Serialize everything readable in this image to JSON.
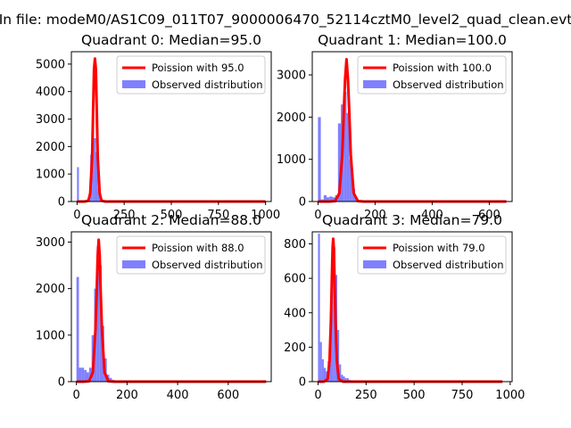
{
  "figure": {
    "suptitle": "In file: modeM0/AS1C09_011T07_9000006470_52114cztM0_level2_quad_clean.evt"
  },
  "colors": {
    "poisson": "#ff0000",
    "observed": "#8080ff",
    "axis": "#000000",
    "background": "#ffffff"
  },
  "chart_data": [
    {
      "type": "bar",
      "title": "Quadrant 0: Median=95.0",
      "xlabel": "",
      "ylabel": "",
      "xlim": [
        -30,
        1030
      ],
      "ylim": [
        0,
        5450
      ],
      "xticks": [
        0,
        250,
        500,
        750,
        1000
      ],
      "xtick_labels": [
        "0",
        "250",
        "500",
        "750",
        "1000"
      ],
      "yticks": [
        0,
        1000,
        2000,
        3000,
        4000,
        5000
      ],
      "ytick_labels": [
        "0",
        "1000",
        "2000",
        "3000",
        "4000",
        "5000"
      ],
      "legend": {
        "position": "top-right",
        "entries": [
          "Poission with 95.0",
          "Observed distribution"
        ]
      },
      "histogram": {
        "name": "Observed distribution",
        "bin_edges": [
          0,
          10,
          20,
          30,
          40,
          50,
          60,
          70,
          80,
          90,
          100,
          110,
          120,
          130,
          140,
          150,
          160,
          170,
          180,
          190,
          200
        ],
        "counts": [
          1250,
          20,
          40,
          30,
          20,
          20,
          150,
          1700,
          3200,
          2300,
          1800,
          500,
          100,
          20,
          10,
          5,
          5,
          0,
          0,
          0
        ]
      },
      "series": [
        {
          "name": "Poission with 95.0",
          "x": [
            0,
            40,
            60,
            70,
            80,
            85,
            90,
            95,
            100,
            105,
            110,
            120,
            130,
            150,
            200,
            1000
          ],
          "y": [
            0,
            0,
            30,
            300,
            1600,
            3200,
            4800,
            5200,
            4800,
            3200,
            1600,
            300,
            30,
            0,
            0,
            0
          ]
        }
      ]
    },
    {
      "type": "bar",
      "title": "Quadrant 1: Median=100.0",
      "xlabel": "",
      "ylabel": "",
      "xlim": [
        -20,
        680
      ],
      "ylim": [
        0,
        3550
      ],
      "xticks": [
        0,
        200,
        400,
        600
      ],
      "xtick_labels": [
        "0",
        "200",
        "400",
        "600"
      ],
      "yticks": [
        0,
        1000,
        2000,
        3000
      ],
      "ytick_labels": [
        "0",
        "1000",
        "2000",
        "3000"
      ],
      "legend": {
        "position": "top-right",
        "entries": [
          "Poission with 100.0",
          "Observed distribution"
        ]
      },
      "histogram": {
        "name": "Observed distribution",
        "bin_edges": [
          0,
          10,
          20,
          30,
          40,
          50,
          60,
          70,
          80,
          90,
          100,
          110,
          120,
          130,
          140,
          150,
          160,
          170,
          180
        ],
        "counts": [
          2000,
          50,
          150,
          100,
          120,
          100,
          150,
          1850,
          2300,
          2600,
          2100,
          1000,
          300,
          80,
          20,
          10,
          0,
          0
        ]
      },
      "series": [
        {
          "name": "Poission with 100.0",
          "x": [
            0,
            40,
            60,
            75,
            85,
            90,
            95,
            100,
            105,
            110,
            115,
            125,
            140,
            160,
            200,
            660
          ],
          "y": [
            0,
            0,
            10,
            200,
            1100,
            2050,
            2900,
            3370,
            2900,
            2050,
            1100,
            200,
            10,
            0,
            0,
            0
          ]
        }
      ]
    },
    {
      "type": "bar",
      "title": "Quadrant 2: Median=88.0",
      "xlabel": "",
      "ylabel": "",
      "xlim": [
        -20,
        770
      ],
      "ylim": [
        0,
        3220
      ],
      "xticks": [
        0,
        200,
        400,
        600
      ],
      "xtick_labels": [
        "0",
        "200",
        "400",
        "600"
      ],
      "yticks": [
        0,
        1000,
        2000,
        3000
      ],
      "ytick_labels": [
        "0",
        "1000",
        "2000",
        "3000"
      ],
      "legend": {
        "position": "top-right",
        "entries": [
          "Poission with 88.0",
          "Observed distribution"
        ]
      },
      "histogram": {
        "name": "Observed distribution",
        "bin_edges": [
          0,
          10,
          20,
          30,
          40,
          50,
          60,
          70,
          80,
          90,
          100,
          110,
          120,
          130,
          140,
          150,
          160,
          170
        ],
        "counts": [
          2250,
          300,
          300,
          250,
          200,
          300,
          1000,
          2000,
          2900,
          2500,
          1200,
          500,
          150,
          80,
          40,
          20,
          0
        ]
      },
      "series": [
        {
          "name": "Poission with 88.0",
          "x": [
            0,
            30,
            50,
            65,
            75,
            80,
            84,
            88,
            92,
            96,
            101,
            111,
            126,
            150,
            200,
            750
          ],
          "y": [
            0,
            0,
            10,
            200,
            1100,
            1900,
            2700,
            3050,
            2700,
            1900,
            1100,
            200,
            10,
            0,
            0,
            0
          ]
        }
      ]
    },
    {
      "type": "bar",
      "title": "Quadrant 3: Median=79.0",
      "xlabel": "",
      "ylabel": "",
      "xlim": [
        -30,
        1010
      ],
      "ylim": [
        0,
        870
      ],
      "xticks": [
        0,
        250,
        500,
        750,
        1000
      ],
      "xtick_labels": [
        "0",
        "250",
        "500",
        "750",
        "1000"
      ],
      "yticks": [
        0,
        200,
        400,
        600,
        800
      ],
      "ytick_labels": [
        "0",
        "200",
        "400",
        "600",
        "800"
      ],
      "legend": {
        "position": "top-right",
        "entries": [
          "Poission with 79.0",
          "Observed distribution"
        ]
      },
      "histogram": {
        "name": "Observed distribution",
        "bin_edges": [
          0,
          10,
          20,
          30,
          40,
          50,
          60,
          70,
          80,
          90,
          100,
          110,
          120,
          130,
          140,
          150,
          160,
          170,
          180
        ],
        "counts": [
          860,
          230,
          130,
          80,
          60,
          120,
          250,
          600,
          780,
          620,
          300,
          100,
          40,
          30,
          20,
          20,
          10,
          0
        ]
      },
      "series": [
        {
          "name": "Poission with 79.0",
          "x": [
            0,
            30,
            50,
            60,
            67,
            72,
            76,
            79,
            82,
            86,
            91,
            98,
            108,
            130,
            200,
            960
          ],
          "y": [
            0,
            0,
            15,
            120,
            350,
            600,
            780,
            830,
            780,
            600,
            350,
            120,
            15,
            0,
            0,
            0
          ]
        }
      ]
    }
  ]
}
